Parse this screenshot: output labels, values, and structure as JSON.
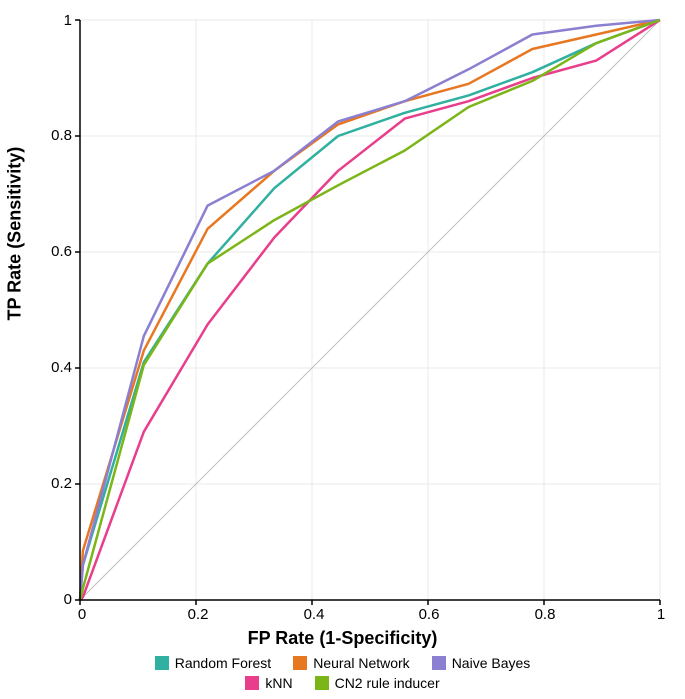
{
  "chart": {
    "type": "line",
    "xlabel": "FP Rate (1-Specificity)",
    "ylabel": "TP Rate (Sensitivity)",
    "label_fontsize": 18,
    "tick_fontsize": 15,
    "xlim": [
      0,
      1
    ],
    "ylim": [
      0,
      1
    ],
    "xticks": [
      0,
      0.2,
      0.4,
      0.6,
      0.8,
      1
    ],
    "yticks": [
      0,
      0.2,
      0.4,
      0.6,
      0.8,
      1
    ],
    "background_color": "#ffffff",
    "grid_color": "#e8e8e8",
    "axis_color": "#000000",
    "reference_line": {
      "from": [
        0,
        0
      ],
      "to": [
        1,
        1
      ],
      "color": "#c0c0c0",
      "width": 1
    },
    "line_width": 2.5,
    "series": [
      {
        "name": "Random Forest",
        "color": "#2fb0a0",
        "x": [
          0,
          0.005,
          0.11,
          0.22,
          0.335,
          0.445,
          0.56,
          0.67,
          0.78,
          0.89,
          1.0
        ],
        "y": [
          0,
          0.06,
          0.41,
          0.58,
          0.71,
          0.8,
          0.84,
          0.87,
          0.91,
          0.96,
          1.0
        ]
      },
      {
        "name": "Neural Network",
        "color": "#e87722",
        "x": [
          0,
          0.005,
          0.11,
          0.22,
          0.335,
          0.445,
          0.56,
          0.67,
          0.78,
          0.89,
          1.0
        ],
        "y": [
          0,
          0.085,
          0.43,
          0.64,
          0.74,
          0.82,
          0.86,
          0.89,
          0.95,
          0.975,
          1.0
        ]
      },
      {
        "name": "Naive Bayes",
        "color": "#8a7fd1",
        "x": [
          0,
          0.005,
          0.11,
          0.22,
          0.335,
          0.445,
          0.56,
          0.67,
          0.78,
          0.89,
          1.0
        ],
        "y": [
          0,
          0.06,
          0.455,
          0.68,
          0.74,
          0.825,
          0.86,
          0.915,
          0.975,
          0.99,
          1.0
        ]
      },
      {
        "name": "kNN",
        "color": "#e83e8c",
        "x": [
          0,
          0.005,
          0.11,
          0.22,
          0.335,
          0.445,
          0.56,
          0.67,
          0.78,
          0.89,
          1.0
        ],
        "y": [
          0,
          0.005,
          0.29,
          0.475,
          0.625,
          0.74,
          0.83,
          0.86,
          0.9,
          0.93,
          1.0
        ]
      },
      {
        "name": "CN2 rule inducer",
        "color": "#7cb518",
        "x": [
          0,
          0.005,
          0.11,
          0.22,
          0.335,
          0.445,
          0.56,
          0.67,
          0.78,
          0.89,
          1.0
        ],
        "y": [
          0,
          0.02,
          0.405,
          0.58,
          0.655,
          0.715,
          0.775,
          0.85,
          0.895,
          0.96,
          1.0
        ]
      }
    ],
    "legend": {
      "rows": [
        [
          "Random Forest",
          "Neural Network",
          "Naive Bayes"
        ],
        [
          "kNN",
          "CN2 rule inducer"
        ]
      ],
      "swatch_size": 14,
      "fontsize": 14
    }
  }
}
